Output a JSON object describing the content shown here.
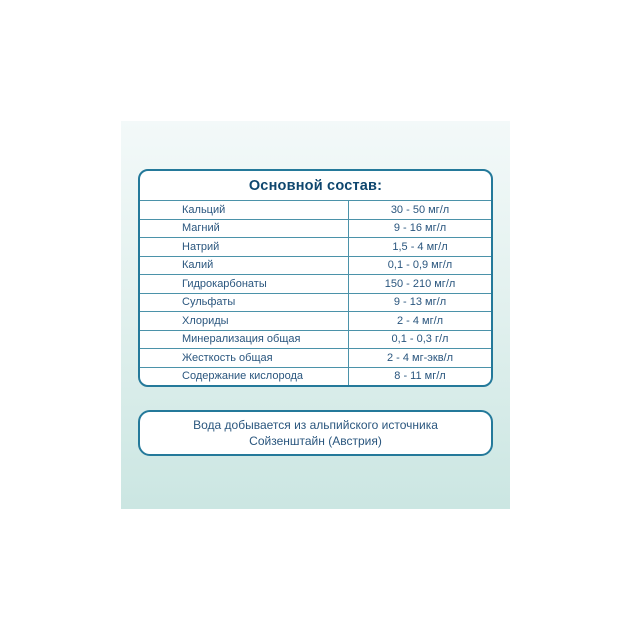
{
  "label": {
    "background_top": "#f3f9f9",
    "background_bottom": "#cbe6e2",
    "border_color": "#24799a",
    "header_text_color": "#0e466e",
    "row_text_color": "#2a567e",
    "divider_color": "#4b92a9"
  },
  "table": {
    "title": "Основной состав:",
    "rows": [
      {
        "name": "Кальций",
        "value": "30 - 50 мг/л"
      },
      {
        "name": "Магний",
        "value": "9 - 16 мг/л"
      },
      {
        "name": "Натрий",
        "value": "1,5 - 4 мг/л"
      },
      {
        "name": "Калий",
        "value": "0,1 - 0,9 мг/л"
      },
      {
        "name": "Гидрокарбонаты",
        "value": "150 - 210 мг/л"
      },
      {
        "name": "Сульфаты",
        "value": "9 - 13 мг/л"
      },
      {
        "name": "Хлориды",
        "value": "2 - 4 мг/л"
      },
      {
        "name": "Минерализация общая",
        "value": "0,1 - 0,3 г/л"
      },
      {
        "name": "Жесткость общая",
        "value": "2 - 4 мг-экв/л"
      },
      {
        "name": "Содержание кислорода",
        "value": "8 - 11 мг/л"
      }
    ]
  },
  "footnote": {
    "line1": "Вода добывается из альпийского источника",
    "line2": "Сойзенштайн (Австрия)"
  }
}
